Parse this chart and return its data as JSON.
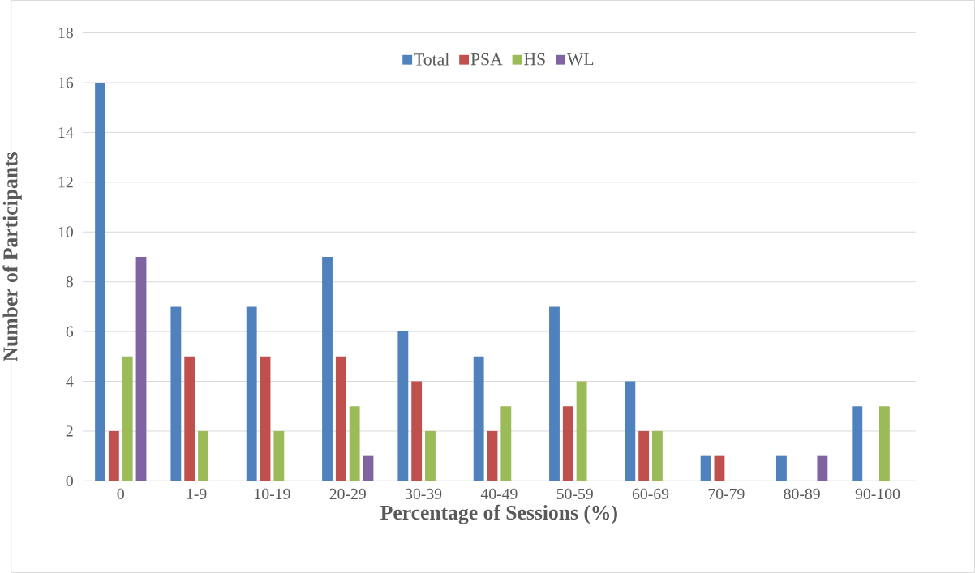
{
  "chart_data": {
    "type": "bar",
    "xlabel": "Percentage of Sessions (%)",
    "ylabel": "Number of Participants",
    "categories": [
      "0",
      "1-9",
      "10-19",
      "20-29",
      "30-39",
      "40-49",
      "50-59",
      "60-69",
      "70-79",
      "80-89",
      "90-100"
    ],
    "series": [
      {
        "name": "Total",
        "color": "#4f81bd",
        "values": [
          16,
          7,
          7,
          9,
          6,
          5,
          7,
          4,
          1,
          1,
          3
        ]
      },
      {
        "name": "PSA",
        "color": "#c0504d",
        "values": [
          2,
          5,
          5,
          5,
          4,
          2,
          3,
          2,
          1,
          0,
          0
        ]
      },
      {
        "name": "HS",
        "color": "#9bbb59",
        "values": [
          5,
          2,
          2,
          3,
          2,
          3,
          4,
          2,
          0,
          0,
          3
        ]
      },
      {
        "name": "WL",
        "color": "#8064a2",
        "values": [
          9,
          0,
          0,
          1,
          0,
          0,
          0,
          0,
          0,
          1,
          0
        ]
      }
    ],
    "ylim": [
      0,
      18
    ],
    "yticks": [
      0,
      2,
      4,
      6,
      8,
      10,
      12,
      14,
      16,
      18
    ],
    "grid": "y",
    "legend": "top"
  }
}
